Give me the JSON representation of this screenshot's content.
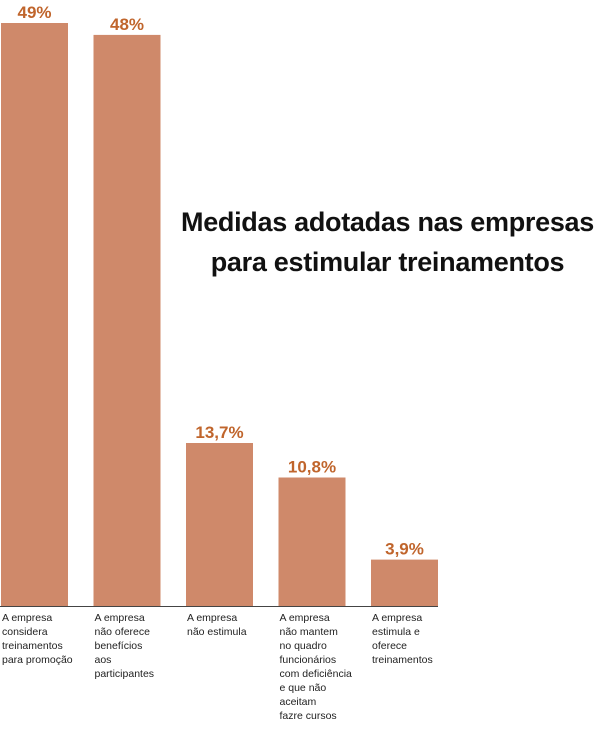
{
  "chart_data": {
    "type": "bar",
    "title_lines": [
      "Medidas adotadas nas empresas",
      "para estimular treinamentos"
    ],
    "categories": [
      [
        "A empresa",
        "considera",
        "treinamentos",
        "para promoção"
      ],
      [
        "A empresa",
        "não oferece",
        "benefícios",
        "aos",
        "participantes"
      ],
      [
        "A empresa",
        "não estimula"
      ],
      [
        "A empresa",
        "não mantem",
        "no quadro",
        "funcionários",
        "com deficiência",
        "e que não",
        "aceitam",
        "fazre cursos"
      ],
      [
        "A empresa",
        "estimula e",
        "oferece",
        "treinamentos"
      ]
    ],
    "values": [
      49,
      48,
      13.7,
      10.8,
      3.9
    ],
    "value_labels": [
      "49%",
      "48%",
      "13,7%",
      "10,8%",
      "3,9%"
    ],
    "ylim": [
      0,
      49
    ],
    "grid": false,
    "legend": "none",
    "xlabel": "",
    "ylabel": "",
    "colors": {
      "bar": "#cf896a",
      "value_label": "#c0652c",
      "title": "#111111"
    }
  }
}
